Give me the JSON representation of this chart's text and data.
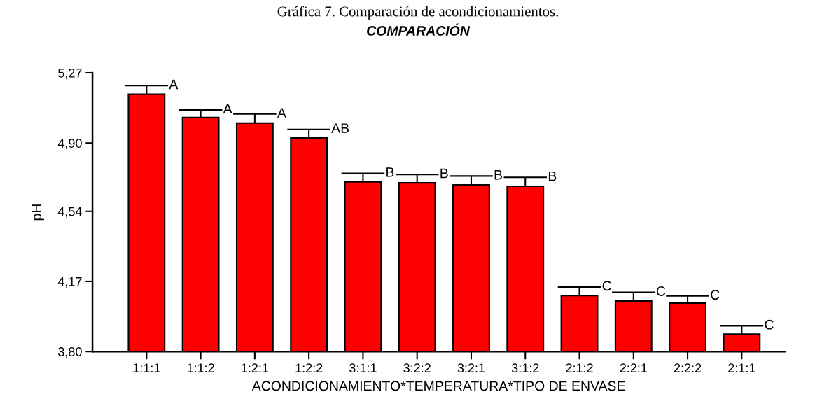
{
  "chart_data": {
    "type": "bar",
    "title": "Gráfica 7. Comparación de acondicionamientos.",
    "subtitle": "COMPARACIÓN",
    "xlabel": "ACONDICIONAMIENTO*TEMPERATURA*TIPO DE ENVASE",
    "ylabel": "pH",
    "categories": [
      "1:1:1",
      "1:1:2",
      "1:2:1",
      "1:2:2",
      "3:1:1",
      "3:2:2",
      "3:2:1",
      "3:1:2",
      "2:1:2",
      "2:2:1",
      "2:2:2",
      "2:1:1"
    ],
    "values": [
      5.157,
      5.035,
      5.005,
      4.927,
      4.695,
      4.69,
      4.679,
      4.672,
      4.095,
      4.067,
      4.055,
      3.892
    ],
    "errors": [
      [
        5.157,
        5.203
      ],
      [
        5.035,
        5.075
      ],
      [
        5.005,
        5.053
      ],
      [
        4.927,
        4.972
      ],
      [
        4.695,
        4.74
      ],
      [
        4.69,
        4.734
      ],
      [
        4.679,
        4.726
      ],
      [
        4.672,
        4.719
      ],
      [
        4.095,
        4.14
      ],
      [
        4.067,
        4.112
      ],
      [
        4.055,
        4.093
      ],
      [
        3.892,
        3.936
      ]
    ],
    "color": "#ff0000",
    "ylim": [
      3.8,
      5.27
    ],
    "yticks": [
      {
        "value": 3.8,
        "label": "3,80"
      },
      {
        "value": 4.17,
        "label": "4,17"
      },
      {
        "value": 4.54,
        "label": "4,54"
      },
      {
        "value": 4.9,
        "label": "4,90"
      },
      {
        "value": 5.27,
        "label": "5,27"
      }
    ],
    "annotations": [
      {
        "text": "A",
        "x": "1:1:1",
        "y": 5.203
      },
      {
        "text": "A",
        "x": "1:1:2",
        "y": 5.075
      },
      {
        "text": "A",
        "x": "1:2:1",
        "y": 5.053
      },
      {
        "text": "AB",
        "x": "1:2:2",
        "y": 4.972
      },
      {
        "text": "B",
        "x": "3:1:1",
        "y": 4.74
      },
      {
        "text": "B",
        "x": "3:2:2",
        "y": 4.734
      },
      {
        "text": "B",
        "x": "3:2:1",
        "y": 4.726
      },
      {
        "text": "B",
        "x": "3:1:2",
        "y": 4.719
      },
      {
        "text": "C",
        "x": "2:1:2",
        "y": 4.14
      },
      {
        "text": "C",
        "x": "2:2:1",
        "y": 4.112
      },
      {
        "text": "C",
        "x": "2:2:2",
        "y": 4.093
      },
      {
        "text": "C",
        "x": "2:1:1",
        "y": 3.936
      }
    ],
    "grid": false
  }
}
